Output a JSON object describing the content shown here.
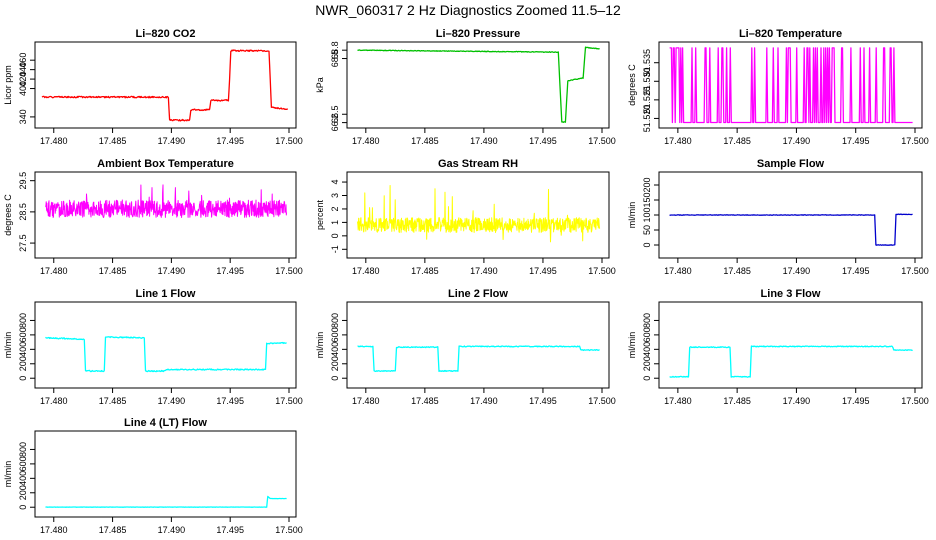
{
  "title": "NWR_060317  2 Hz Diagnostics Zoomed 11.5–12",
  "chart_data": [
    {
      "type": "line",
      "title": "Li–820 CO2",
      "ylabel": "Licor ppm",
      "color": "#ff0000",
      "xlim": [
        17.479,
        17.5
      ],
      "ylim": [
        325,
        490
      ],
      "yticks": [
        "340",
        "400",
        "420",
        "440",
        "460"
      ],
      "yticks_values": [
        340,
        400,
        420,
        440,
        460
      ],
      "xticks": [
        "17.480",
        "17.485",
        "17.490",
        "17.495",
        "17.500"
      ],
      "xticks_values": [
        17.48,
        17.485,
        17.49,
        17.495,
        17.5
      ],
      "series": [
        {
          "name": "CO2",
          "noise": 1.5,
          "seed": 1,
          "steps": [
            [
              17.479,
              382
            ],
            [
              17.48975,
              382
            ],
            [
              17.48985,
              333
            ],
            [
              17.49155,
              333
            ],
            [
              17.49165,
              355
            ],
            [
              17.49325,
              355
            ],
            [
              17.49335,
              375
            ],
            [
              17.49485,
              375
            ],
            [
              17.49495,
              420
            ],
            [
              17.49505,
              480
            ],
            [
              17.4983,
              480
            ],
            [
              17.4985,
              360
            ],
            [
              17.4999,
              357
            ]
          ]
        }
      ]
    },
    {
      "type": "line",
      "title": "Li–820 Pressure",
      "ylabel": "kPa",
      "color": "#00c000",
      "xlim": [
        17.479,
        17.5
      ],
      "ylim": [
        66.15,
        68.95
      ],
      "yticks": [
        "66.2",
        "66.5",
        "68.5",
        "68.8"
      ],
      "yticks_values": [
        66.2,
        66.5,
        68.5,
        68.8
      ],
      "xticks": [
        "17.480",
        "17.485",
        "17.490",
        "17.495",
        "17.500"
      ],
      "xticks_values": [
        17.48,
        17.485,
        17.49,
        17.495,
        17.5
      ],
      "series": [
        {
          "name": "Pressure",
          "noise": 0.012,
          "seed": 2,
          "steps": [
            [
              17.4793,
              68.8
            ],
            [
              17.4963,
              68.73
            ],
            [
              17.4966,
              66.22
            ],
            [
              17.4969,
              66.22
            ],
            [
              17.4971,
              67.7
            ],
            [
              17.4984,
              67.8
            ],
            [
              17.4986,
              68.9
            ],
            [
              17.4998,
              68.85
            ]
          ]
        }
      ]
    },
    {
      "type": "line",
      "title": "Li–820 Temperature",
      "ylabel": "degrees C",
      "color": "#ff00ff",
      "xlim": [
        17.479,
        17.5
      ],
      "ylim": [
        51.5185,
        51.5395
      ],
      "yticks": [
        "51.520",
        "51.525",
        "51.530",
        "51.535"
      ],
      "yticks_values": [
        51.52,
        51.525,
        51.53,
        51.535
      ],
      "xticks": [
        "17.480",
        "17.485",
        "17.490",
        "17.495",
        "17.500"
      ],
      "xticks_values": [
        17.48,
        17.485,
        17.49,
        17.495,
        17.5
      ],
      "series": [
        {
          "name": "Temperature",
          "type": "binary",
          "seed": 3,
          "low": 51.5189,
          "high": 51.539,
          "n": 260
        }
      ]
    },
    {
      "type": "line",
      "title": "Ambient Box Temperature",
      "ylabel": "degrees C",
      "color": "#ff00ff",
      "xlim": [
        17.479,
        17.5
      ],
      "ylim": [
        27.15,
        29.65
      ],
      "yticks": [
        "27.5",
        "28.5",
        "29.5"
      ],
      "yticks_values": [
        27.5,
        28.5,
        29.5
      ],
      "xticks": [
        "17.480",
        "17.485",
        "17.490",
        "17.495",
        "17.500"
      ],
      "xticks_values": [
        17.48,
        17.485,
        17.49,
        17.495,
        17.5
      ],
      "series": [
        {
          "name": "Ambient",
          "type": "noise",
          "seed": 4,
          "center": 28.6,
          "amp": 0.28,
          "spike": 0.7,
          "n": 700,
          "x0": 17.4793,
          "x1": 17.4998
        }
      ]
    },
    {
      "type": "line",
      "title": "Gas Stream RH",
      "ylabel": "percent",
      "color": "#ffff00",
      "xlim": [
        17.479,
        17.5
      ],
      "ylim": [
        -1.35,
        4.45
      ],
      "yticks": [
        "-1",
        "0",
        "1",
        "2",
        "3",
        "4"
      ],
      "yticks_values": [
        -1,
        0,
        1,
        2,
        3,
        4
      ],
      "xticks": [
        "17.480",
        "17.485",
        "17.490",
        "17.495",
        "17.500"
      ],
      "xticks_values": [
        17.48,
        17.485,
        17.49,
        17.495,
        17.5
      ],
      "series": [
        {
          "name": "RH",
          "type": "noise",
          "seed": 5,
          "center": 0.8,
          "amp": 0.55,
          "spike": 3.0,
          "n": 700,
          "x0": 17.4793,
          "x1": 17.4998
        }
      ]
    },
    {
      "type": "line",
      "title": "Sample Flow",
      "ylabel": "ml/min",
      "color": "#0000cc",
      "xlim": [
        17.479,
        17.5
      ],
      "ylim": [
        -30,
        230
      ],
      "yticks": [
        "0",
        "50",
        "100",
        "150",
        "200"
      ],
      "yticks_values": [
        0,
        50,
        100,
        150,
        200
      ],
      "xticks": [
        "17.480",
        "17.485",
        "17.490",
        "17.495",
        "17.500"
      ],
      "xticks_values": [
        17.48,
        17.485,
        17.49,
        17.495,
        17.5
      ],
      "series": [
        {
          "name": "Sample Flow",
          "noise": 0.8,
          "seed": 6,
          "steps": [
            [
              17.4793,
              100
            ],
            [
              17.4966,
              100
            ],
            [
              17.4967,
              0
            ],
            [
              17.4983,
              0
            ],
            [
              17.4984,
              102
            ],
            [
              17.4998,
              102
            ]
          ]
        }
      ]
    },
    {
      "type": "line",
      "title": "Line 1 Flow",
      "ylabel": "ml/min",
      "color": "#00ffff",
      "xlim": [
        17.479,
        17.5
      ],
      "ylim": [
        -80,
        1000
      ],
      "yticks": [
        "0",
        "200",
        "400",
        "600",
        "800"
      ],
      "yticks_values": [
        0,
        200,
        400,
        600,
        800
      ],
      "xticks": [
        "17.480",
        "17.485",
        "17.490",
        "17.495",
        "17.500"
      ],
      "xticks_values": [
        17.48,
        17.485,
        17.49,
        17.495,
        17.5
      ],
      "series": [
        {
          "name": "Line 1",
          "noise": 8,
          "seed": 7,
          "steps": [
            [
              17.4793,
              560
            ],
            [
              17.4826,
              540
            ],
            [
              17.4827,
              100
            ],
            [
              17.4843,
              100
            ],
            [
              17.4844,
              570
            ],
            [
              17.4877,
              560
            ],
            [
              17.4878,
              100
            ],
            [
              17.4895,
              100
            ],
            [
              17.4896,
              120
            ],
            [
              17.498,
              120
            ],
            [
              17.4981,
              480
            ],
            [
              17.4998,
              490
            ]
          ]
        }
      ]
    },
    {
      "type": "line",
      "title": "Line 2 Flow",
      "ylabel": "ml/min",
      "color": "#00ffff",
      "xlim": [
        17.479,
        17.5
      ],
      "ylim": [
        -80,
        1000
      ],
      "yticks": [
        "0",
        "200",
        "400",
        "600",
        "800"
      ],
      "yticks_values": [
        0,
        200,
        400,
        600,
        800
      ],
      "xticks": [
        "17.480",
        "17.485",
        "17.490",
        "17.495",
        "17.500"
      ],
      "xticks_values": [
        17.48,
        17.485,
        17.49,
        17.495,
        17.5
      ],
      "series": [
        {
          "name": "Line 2",
          "noise": 6,
          "seed": 8,
          "steps": [
            [
              17.4793,
              440
            ],
            [
              17.4806,
              440
            ],
            [
              17.4807,
              100
            ],
            [
              17.4825,
              100
            ],
            [
              17.4826,
              430
            ],
            [
              17.4861,
              430
            ],
            [
              17.4862,
              100
            ],
            [
              17.4878,
              100
            ],
            [
              17.4879,
              440
            ],
            [
              17.4981,
              440
            ],
            [
              17.4982,
              390
            ],
            [
              17.4998,
              390
            ]
          ]
        }
      ]
    },
    {
      "type": "line",
      "title": "Line 3 Flow",
      "ylabel": "ml/min",
      "color": "#00ffff",
      "xlim": [
        17.479,
        17.5
      ],
      "ylim": [
        -80,
        1000
      ],
      "yticks": [
        "0",
        "200",
        "400",
        "600",
        "800"
      ],
      "yticks_values": [
        0,
        200,
        400,
        600,
        800
      ],
      "xticks": [
        "17.480",
        "17.485",
        "17.490",
        "17.495",
        "17.500"
      ],
      "xticks_values": [
        17.48,
        17.485,
        17.49,
        17.495,
        17.5
      ],
      "series": [
        {
          "name": "Line 3",
          "noise": 6,
          "seed": 9,
          "steps": [
            [
              17.4793,
              20
            ],
            [
              17.4809,
              20
            ],
            [
              17.481,
              430
            ],
            [
              17.4844,
              430
            ],
            [
              17.4845,
              20
            ],
            [
              17.4861,
              20
            ],
            [
              17.4862,
              440
            ],
            [
              17.4981,
              440
            ],
            [
              17.4982,
              390
            ],
            [
              17.4998,
              390
            ]
          ]
        }
      ]
    },
    {
      "type": "line",
      "title": "Line 4 (LT) Flow",
      "ylabel": "ml/min",
      "color": "#00ffff",
      "xlim": [
        17.479,
        17.5
      ],
      "ylim": [
        -80,
        1000
      ],
      "yticks": [
        "0",
        "200",
        "400",
        "600",
        "800"
      ],
      "yticks_values": [
        0,
        200,
        400,
        600,
        800
      ],
      "xticks": [
        "17.480",
        "17.485",
        "17.490",
        "17.495",
        "17.500"
      ],
      "xticks_values": [
        17.48,
        17.485,
        17.49,
        17.495,
        17.5
      ],
      "series": [
        {
          "name": "Line 4",
          "noise": 1.5,
          "seed": 10,
          "steps": [
            [
              17.4793,
              2
            ],
            [
              17.4981,
              2
            ],
            [
              17.4982,
              150
            ],
            [
              17.4984,
              120
            ],
            [
              17.4998,
              120
            ]
          ]
        }
      ]
    }
  ]
}
